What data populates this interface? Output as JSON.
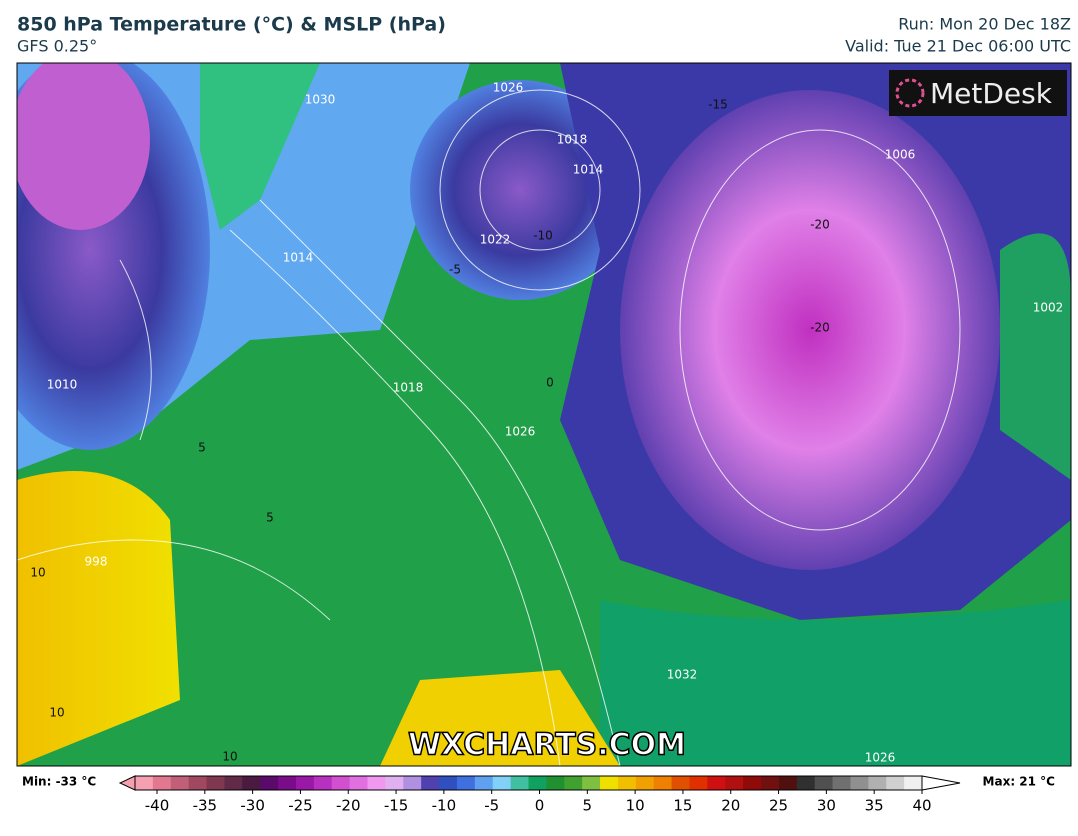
{
  "header": {
    "title": "850 hPa Temperature (°C) & MSLP (hPa)",
    "model": "GFS 0.25°",
    "run": "Run: Mon 20 Dec 18Z",
    "valid": "Valid: Tue 21 Dec 06:00 UTC"
  },
  "logo": "MetDesk",
  "watermark": "WXCHARTS.COM",
  "legend": {
    "min": "Min: -33 °C",
    "max": "Max: 21 °C",
    "ticks": [
      -40,
      -35,
      -30,
      -25,
      -20,
      -15,
      -10,
      -5,
      0,
      5,
      10,
      15,
      20,
      25,
      30,
      35,
      40
    ],
    "colors": [
      "#f4a0b0",
      "#e07890",
      "#c06078",
      "#a04860",
      "#803850",
      "#602a48",
      "#4a1a40",
      "#5a0a6a",
      "#7a0c8a",
      "#9a18a8",
      "#b830c0",
      "#d050d0",
      "#e070e0",
      "#f098f0",
      "#e0b0f0",
      "#b090e0",
      "#5040b0",
      "#3050c0",
      "#4070e0",
      "#60a0f0",
      "#80d0f8",
      "#40c0a0",
      "#10a060",
      "#209030",
      "#40a030",
      "#80c040",
      "#f0e000",
      "#f0c000",
      "#f0a000",
      "#f08000",
      "#e05000",
      "#e03000",
      "#d01010",
      "#b01010",
      "#900a0a",
      "#701010",
      "#501010",
      "#303030",
      "#505050",
      "#707070",
      "#909090",
      "#b0b0b0",
      "#d0d0d0",
      "#f0f0f0"
    ]
  },
  "map_labels": [
    "1026",
    "1018",
    "1014",
    "1022",
    "1030",
    "1006",
    "1010",
    "1014",
    "1018",
    "1026",
    "1002",
    "998",
    "1032",
    "1026",
    "-15",
    "-20",
    "-20",
    "-10",
    "-5",
    "0",
    "5",
    "5",
    "10",
    "10",
    "10"
  ]
}
